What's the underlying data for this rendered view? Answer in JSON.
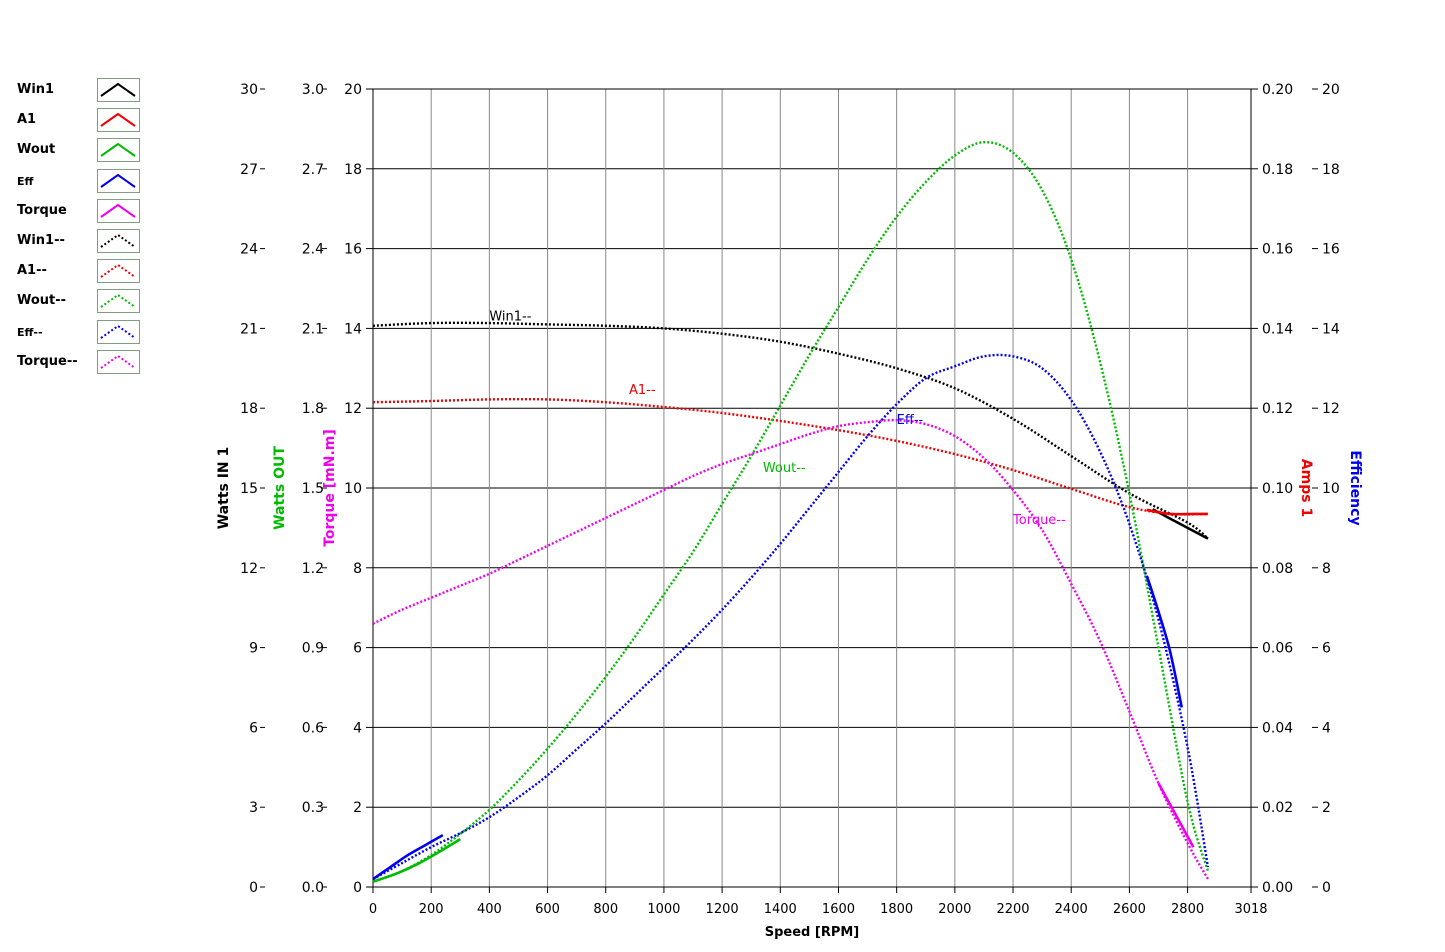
{
  "legend": {
    "items": [
      {
        "label": "Win1",
        "color": "#000000",
        "style": "solid"
      },
      {
        "label": "A1",
        "color": "#ee0000",
        "style": "solid"
      },
      {
        "label": "Wout",
        "color": "#00bb00",
        "style": "solid"
      },
      {
        "label": "Eff",
        "color": "#0000ee",
        "style": "solid"
      },
      {
        "label": "Torque",
        "color": "#ee00ee",
        "style": "solid"
      },
      {
        "label": "Win1--",
        "color": "#000000",
        "style": "dotted"
      },
      {
        "label": "A1--",
        "color": "#ee0000",
        "style": "dotted"
      },
      {
        "label": "Wout--",
        "color": "#00bb00",
        "style": "dotted"
      },
      {
        "label": "Eff--",
        "color": "#0000ee",
        "style": "dotted"
      },
      {
        "label": "Torque--",
        "color": "#ee00ee",
        "style": "dotted"
      }
    ]
  },
  "chart_data": {
    "type": "line",
    "xlabel": "Speed [RPM]",
    "xlim": [
      0,
      3018
    ],
    "x_ticks": [
      "0",
      "200",
      "400",
      "600",
      "800",
      "1000",
      "1200",
      "1400",
      "1600",
      "1800",
      "2000",
      "2200",
      "2400",
      "2600",
      "2800",
      "3018"
    ],
    "grid": "on",
    "axes": [
      {
        "id": "watts_in",
        "side": "left",
        "label": "Watts IN 1",
        "color": "#000000",
        "min": 0,
        "max": 30,
        "ticks": [
          "0",
          "3",
          "6",
          "9",
          "12",
          "15",
          "18",
          "21",
          "24",
          "27",
          "30"
        ]
      },
      {
        "id": "watts_out",
        "side": "left",
        "label": "Watts OUT",
        "color": "#00bb00",
        "min": 0,
        "max": 3,
        "ticks": [
          "0.0",
          "0.3",
          "0.6",
          "0.9",
          "1.2",
          "1.5",
          "1.8",
          "2.1",
          "2.4",
          "2.7",
          "3.0"
        ]
      },
      {
        "id": "torque",
        "side": "left",
        "label": "Torque [mN.m]",
        "color": "#ee00ee",
        "min": 0,
        "max": 20,
        "ticks": [
          "0",
          "2",
          "4",
          "6",
          "8",
          "10",
          "12",
          "14",
          "16",
          "18",
          "20"
        ]
      },
      {
        "id": "amps",
        "side": "right",
        "label": "Amps 1",
        "color": "#ee0000",
        "min": 0,
        "max": 0.2,
        "ticks": [
          "0.00",
          "0.02",
          "0.04",
          "0.06",
          "0.08",
          "0.10",
          "0.12",
          "0.14",
          "0.16",
          "0.18",
          "0.20"
        ]
      },
      {
        "id": "efficiency",
        "side": "right",
        "label": "Efficiency",
        "color": "#0000ee",
        "min": 0,
        "max": 20,
        "ticks": [
          "0",
          "2",
          "4",
          "6",
          "8",
          "10",
          "12",
          "14",
          "16",
          "18",
          "20"
        ]
      }
    ],
    "series": [
      {
        "name": "Win1--",
        "axis": "watts_in",
        "color": "#000000",
        "style": "dotted",
        "x": [
          0,
          200,
          400,
          600,
          800,
          1000,
          1200,
          1400,
          1600,
          1800,
          2000,
          2200,
          2400,
          2600,
          2800,
          2870
        ],
        "y": [
          21.1,
          21.2,
          21.2,
          21.15,
          21.1,
          21.0,
          20.8,
          20.5,
          20.05,
          19.5,
          18.75,
          17.6,
          16.2,
          14.8,
          13.7,
          13.1
        ]
      },
      {
        "name": "Win1",
        "axis": "watts_in",
        "color": "#000000",
        "style": "solid",
        "x": [
          2680,
          2740,
          2800,
          2870
        ],
        "y": [
          14.2,
          13.85,
          13.5,
          13.1
        ]
      },
      {
        "name": "A1--",
        "axis": "amps",
        "color": "#ee0000",
        "style": "dotted",
        "x": [
          0,
          200,
          400,
          600,
          800,
          1000,
          1200,
          1400,
          1600,
          1800,
          2000,
          2200,
          2400,
          2600,
          2750,
          2870
        ],
        "y": [
          0.1215,
          0.1218,
          0.1222,
          0.1222,
          0.1215,
          0.1203,
          0.1188,
          0.1168,
          0.1145,
          0.1118,
          0.1085,
          0.1045,
          0.0998,
          0.0952,
          0.0935,
          0.0935
        ]
      },
      {
        "name": "A1",
        "axis": "amps",
        "color": "#ee0000",
        "style": "solid",
        "x": [
          2660,
          2740,
          2820,
          2870
        ],
        "y": [
          0.0945,
          0.0935,
          0.0935,
          0.0935
        ]
      },
      {
        "name": "Wout--",
        "axis": "watts_out",
        "color": "#00bb00",
        "style": "dotted",
        "x": [
          0,
          100,
          200,
          300,
          400,
          500,
          600,
          700,
          800,
          900,
          1000,
          1100,
          1200,
          1300,
          1400,
          1500,
          1600,
          1700,
          1800,
          1900,
          2000,
          2100,
          2200,
          2300,
          2400,
          2500,
          2600,
          2700,
          2800,
          2870
        ],
        "y": [
          0.02,
          0.06,
          0.12,
          0.2,
          0.29,
          0.4,
          0.52,
          0.65,
          0.79,
          0.94,
          1.1,
          1.26,
          1.44,
          1.62,
          1.81,
          2.0,
          2.18,
          2.36,
          2.52,
          2.65,
          2.75,
          2.8,
          2.76,
          2.62,
          2.36,
          1.97,
          1.48,
          0.9,
          0.32,
          0.06
        ]
      },
      {
        "name": "Wout",
        "axis": "watts_out",
        "color": "#00bb00",
        "style": "solid",
        "x": [
          0,
          80,
          160,
          240,
          300
        ],
        "y": [
          0.02,
          0.05,
          0.09,
          0.14,
          0.18
        ]
      },
      {
        "name": "Eff--",
        "axis": "efficiency",
        "color": "#0000ee",
        "style": "dotted",
        "x": [
          0,
          100,
          200,
          300,
          400,
          500,
          600,
          700,
          800,
          900,
          1000,
          1100,
          1200,
          1300,
          1400,
          1500,
          1600,
          1700,
          1800,
          1900,
          2000,
          2100,
          2200,
          2300,
          2400,
          2500,
          2600,
          2700,
          2800,
          2870
        ],
        "y": [
          0.2,
          0.6,
          1.0,
          1.35,
          1.75,
          2.25,
          2.8,
          3.45,
          4.1,
          4.8,
          5.5,
          6.2,
          6.95,
          7.75,
          8.6,
          9.5,
          10.4,
          11.3,
          12.1,
          12.75,
          13.05,
          13.3,
          13.3,
          13.0,
          12.2,
          10.9,
          9.1,
          6.7,
          3.5,
          0.5
        ]
      },
      {
        "name": "Eff",
        "axis": "efficiency",
        "color": "#0000ee",
        "style": "solid",
        "x": [
          0,
          60,
          120,
          180,
          240,
          2660,
          2700,
          2740,
          2780
        ],
        "y": [
          0.2,
          0.5,
          0.8,
          1.05,
          1.3,
          7.8,
          6.9,
          5.9,
          4.5
        ]
      },
      {
        "name": "Torque--",
        "axis": "torque",
        "color": "#ee00ee",
        "style": "dotted",
        "x": [
          0,
          100,
          200,
          300,
          400,
          500,
          600,
          700,
          800,
          900,
          1000,
          1100,
          1200,
          1300,
          1400,
          1500,
          1600,
          1700,
          1800,
          1900,
          2000,
          2100,
          2200,
          2300,
          2400,
          2500,
          2600,
          2700,
          2800,
          2870
        ],
        "y": [
          6.6,
          6.95,
          7.25,
          7.55,
          7.85,
          8.2,
          8.55,
          8.9,
          9.25,
          9.6,
          9.95,
          10.3,
          10.6,
          10.85,
          11.1,
          11.35,
          11.55,
          11.65,
          11.7,
          11.6,
          11.3,
          10.75,
          9.95,
          8.95,
          7.6,
          6.15,
          4.4,
          2.6,
          1.1,
          0.2
        ]
      },
      {
        "name": "Torque",
        "axis": "torque",
        "color": "#ee00ee",
        "style": "solid",
        "x": [
          2700,
          2760,
          2820
        ],
        "y": [
          2.6,
          1.8,
          1.0
        ]
      }
    ],
    "annotations": [
      {
        "text": "Win1--",
        "x": 400,
        "axis": "watts_in",
        "y": 21.3,
        "color": "#000000"
      },
      {
        "text": "A1--",
        "x": 880,
        "axis": "amps",
        "y": 0.1235,
        "color": "#ee0000"
      },
      {
        "text": "Wout--",
        "x": 1340,
        "axis": "watts_out",
        "y": 1.56,
        "color": "#00bb00"
      },
      {
        "text": "Eff--",
        "x": 1800,
        "axis": "efficiency",
        "y": 11.6,
        "color": "#0000ee"
      },
      {
        "text": "Torque--",
        "x": 2200,
        "axis": "torque",
        "y": 9.1,
        "color": "#ee00ee"
      }
    ]
  }
}
